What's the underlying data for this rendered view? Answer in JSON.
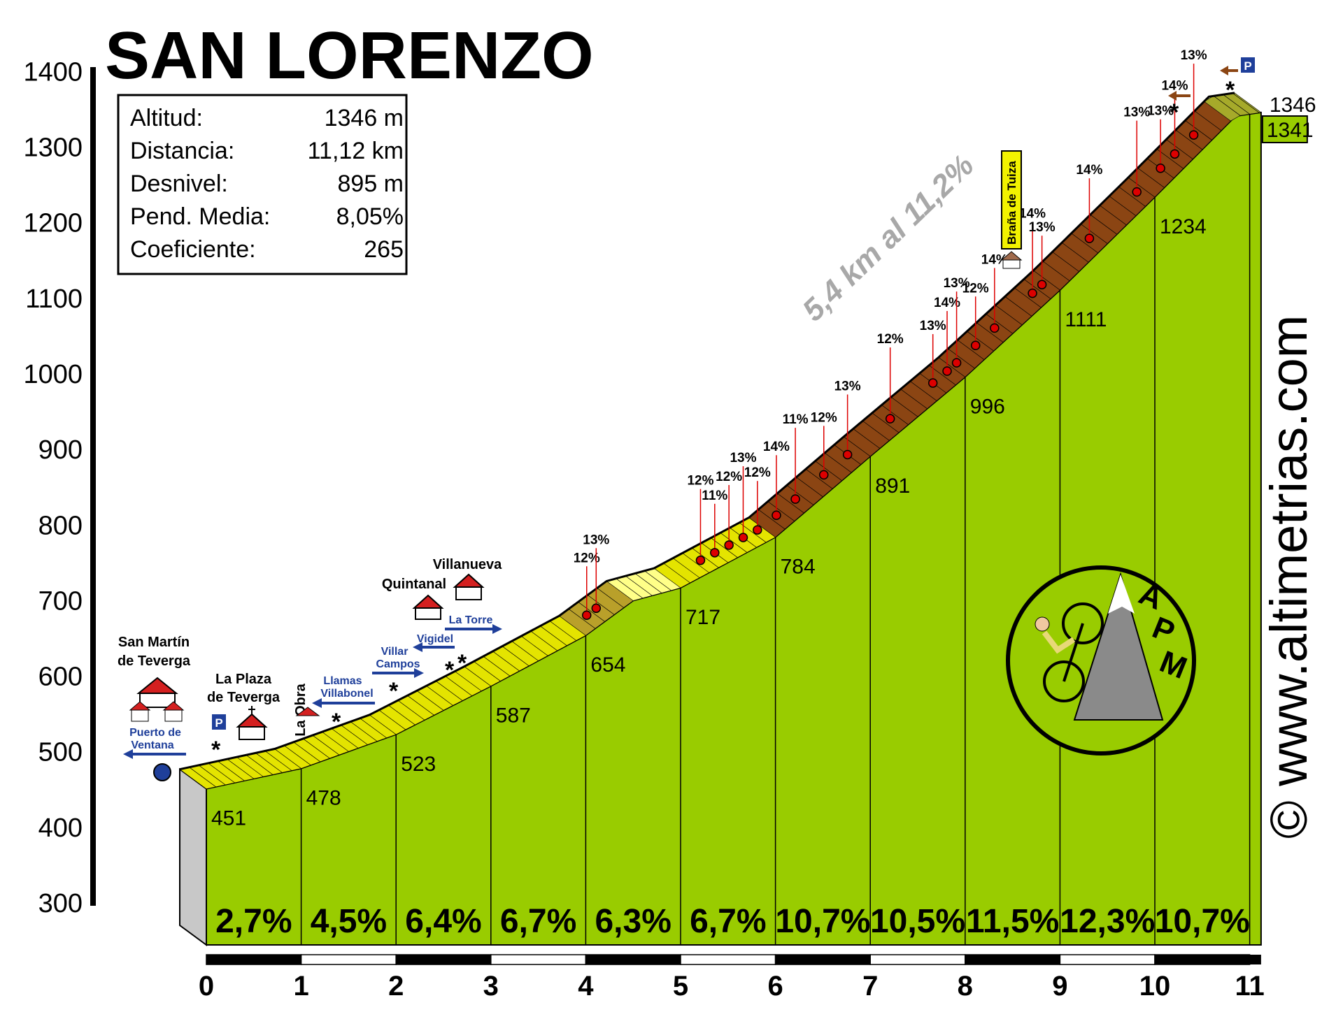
{
  "title": "SAN LORENZO",
  "info": [
    {
      "label": "Altitud:",
      "value": "1346 m"
    },
    {
      "label": "Distancia:",
      "value": "11,12 km"
    },
    {
      "label": "Desnivel:",
      "value": "895 m"
    },
    {
      "label": "Pend. Media:",
      "value": "8,05%"
    },
    {
      "label": "Coeficiente:",
      "value": "265"
    }
  ],
  "steep_label": "5,4 km al 11,2%",
  "website": "© www.altimetrias.com",
  "logo": {
    "letters": [
      "A",
      "P",
      "M"
    ]
  },
  "places": [
    {
      "lines": [
        "San Martín",
        "de Teverga"
      ],
      "km": -0.3
    },
    {
      "lines": [
        "La Plaza",
        "de Teverga"
      ],
      "km": 0.55
    },
    {
      "lines": [
        "La Obra"
      ],
      "km": 1.0
    },
    {
      "lines": [
        "Quintanal"
      ],
      "km": 2.2
    },
    {
      "lines": [
        "Villanueva"
      ],
      "km": 2.8
    }
  ],
  "road_signs": [
    "Puerto de",
    "Ventana",
    "Llamas",
    "Villabonel",
    "Villar",
    "Campos",
    "Vigidel",
    "La Torre"
  ],
  "hut_label": "Braña de Tuiza",
  "colors": {
    "green": "#99cc00",
    "yellow": "#e4e400",
    "brown": "#8b4513",
    "red": "#dd0000",
    "blue": "#1f3f9a"
  },
  "chart_data": {
    "type": "area",
    "title": "SAN LORENZO",
    "xlabel": "",
    "ylabel": "",
    "x_ticks": [
      0,
      1,
      2,
      3,
      4,
      5,
      6,
      7,
      8,
      9,
      10,
      11
    ],
    "y_ticks": [
      300,
      400,
      500,
      600,
      700,
      800,
      900,
      1000,
      1100,
      1200,
      1300,
      1400
    ],
    "xlim": [
      0,
      11.12
    ],
    "ylim": [
      300,
      1400
    ],
    "profile": [
      {
        "km": 0,
        "elev": 451
      },
      {
        "km": 1,
        "elev": 478
      },
      {
        "km": 2,
        "elev": 523
      },
      {
        "km": 3,
        "elev": 587
      },
      {
        "km": 4,
        "elev": 654
      },
      {
        "km": 4.5,
        "elev": 700
      },
      {
        "km": 5,
        "elev": 717
      },
      {
        "km": 6,
        "elev": 784
      },
      {
        "km": 7,
        "elev": 891
      },
      {
        "km": 8,
        "elev": 996
      },
      {
        "km": 9,
        "elev": 1111
      },
      {
        "km": 10,
        "elev": 1234
      },
      {
        "km": 10.85,
        "elev": 1341
      },
      {
        "km": 11.12,
        "elev": 1346
      }
    ],
    "km_elevation_labels": [
      "451",
      "478",
      "523",
      "587",
      "654",
      "717",
      "784",
      "891",
      "996",
      "1111",
      "1234",
      "1341",
      "1346"
    ],
    "segment_gradients": [
      "2,7%",
      "4,5%",
      "6,4%",
      "6,7%",
      "6,3%",
      "6,7%",
      "10,7%",
      "10,5%",
      "11,5%",
      "12,3%",
      "10,7%"
    ],
    "gradient_markers": [
      {
        "km": 4.15,
        "label": "12%"
      },
      {
        "km": 4.25,
        "label": "13%"
      },
      {
        "km": 5.35,
        "label": "12%"
      },
      {
        "km": 5.5,
        "label": "11%"
      },
      {
        "km": 5.65,
        "label": "12%"
      },
      {
        "km": 5.8,
        "label": "13%"
      },
      {
        "km": 5.95,
        "label": "12%"
      },
      {
        "km": 6.15,
        "label": "14%"
      },
      {
        "km": 6.35,
        "label": "11%"
      },
      {
        "km": 6.65,
        "label": "12%"
      },
      {
        "km": 6.9,
        "label": "13%"
      },
      {
        "km": 7.35,
        "label": "12%"
      },
      {
        "km": 7.8,
        "label": "13%"
      },
      {
        "km": 7.95,
        "label": "14%"
      },
      {
        "km": 8.05,
        "label": "13%"
      },
      {
        "km": 8.25,
        "label": "12%"
      },
      {
        "km": 8.45,
        "label": "14%"
      },
      {
        "km": 8.85,
        "label": "14%"
      },
      {
        "km": 8.95,
        "label": "13%"
      },
      {
        "km": 9.45,
        "label": "14%"
      },
      {
        "km": 9.95,
        "label": "13%"
      },
      {
        "km": 10.2,
        "label": "13%"
      },
      {
        "km": 10.35,
        "label": "14%"
      },
      {
        "km": 10.55,
        "label": "13%"
      }
    ]
  }
}
